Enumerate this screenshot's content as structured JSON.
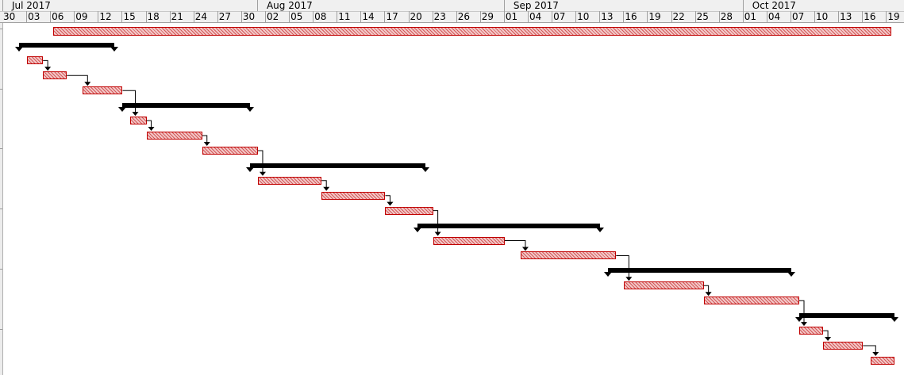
{
  "timeline": {
    "months": [
      "Jul 2017",
      "Aug 2017",
      "Sep 2017",
      "Oct 2017"
    ],
    "ticks": [
      "30",
      "03",
      "06",
      "09",
      "12",
      "15",
      "18",
      "21",
      "24",
      "27",
      "30",
      "02",
      "05",
      "08",
      "11",
      "14",
      "17",
      "20",
      "23",
      "26",
      "29",
      "01",
      "04",
      "07",
      "10",
      "13",
      "16",
      "19",
      "22",
      "25",
      "28",
      "01",
      "04",
      "07",
      "10",
      "13",
      "16",
      "19"
    ]
  },
  "colors": {
    "task_fill": "#f2c8c8",
    "task_hatch": "#d45858",
    "task_border": "#c00000",
    "summary": "#000000",
    "link": "#000000",
    "header_bg": "#f0f0f0"
  },
  "project": {
    "start": "2017-07-03",
    "finish": "2017-10-19"
  },
  "summaries": [
    {
      "start": "2017-07-02",
      "finish": "2017-07-13"
    },
    {
      "start": "2017-07-15",
      "finish": "2017-07-30"
    },
    {
      "start": "2017-07-31",
      "finish": "2017-08-21"
    },
    {
      "start": "2017-08-21",
      "finish": "2017-09-12"
    },
    {
      "start": "2017-09-14",
      "finish": "2017-10-06"
    },
    {
      "start": "2017-10-08",
      "finish": "2017-10-19"
    }
  ],
  "tasks": [
    {
      "start": "2017-07-03",
      "finish": "2017-07-04"
    },
    {
      "start": "2017-07-05",
      "finish": "2017-07-07"
    },
    {
      "start": "2017-07-10",
      "finish": "2017-07-14"
    },
    {
      "start": "2017-07-16",
      "finish": "2017-07-17"
    },
    {
      "start": "2017-07-18",
      "finish": "2017-07-24"
    },
    {
      "start": "2017-07-25",
      "finish": "2017-07-31"
    },
    {
      "start": "2017-08-01",
      "finish": "2017-08-08"
    },
    {
      "start": "2017-08-09",
      "finish": "2017-08-16"
    },
    {
      "start": "2017-08-17",
      "finish": "2017-08-22"
    },
    {
      "start": "2017-08-23",
      "finish": "2017-08-31"
    },
    {
      "start": "2017-09-03",
      "finish": "2017-09-14"
    },
    {
      "start": "2017-09-16",
      "finish": "2017-09-25"
    },
    {
      "start": "2017-09-26",
      "finish": "2017-10-07"
    },
    {
      "start": "2017-10-08",
      "finish": "2017-10-10"
    },
    {
      "start": "2017-10-11",
      "finish": "2017-10-15"
    },
    {
      "start": "2017-10-17",
      "finish": "2017-10-19"
    }
  ],
  "rows": [
    {
      "kind": "project",
      "index": 0
    },
    {
      "kind": "summary",
      "index": 0
    },
    {
      "kind": "task",
      "index": 0
    },
    {
      "kind": "task",
      "index": 1
    },
    {
      "kind": "task",
      "index": 2
    },
    {
      "kind": "summary",
      "index": 1
    },
    {
      "kind": "task",
      "index": 3
    },
    {
      "kind": "task",
      "index": 4
    },
    {
      "kind": "task",
      "index": 5
    },
    {
      "kind": "summary",
      "index": 2
    },
    {
      "kind": "task",
      "index": 6
    },
    {
      "kind": "task",
      "index": 7
    },
    {
      "kind": "task",
      "index": 8
    },
    {
      "kind": "summary",
      "index": 3
    },
    {
      "kind": "task",
      "index": 9
    },
    {
      "kind": "task",
      "index": 10
    },
    {
      "kind": "summary",
      "index": 4
    },
    {
      "kind": "task",
      "index": 11
    },
    {
      "kind": "task",
      "index": 12
    },
    {
      "kind": "summary",
      "index": 5
    },
    {
      "kind": "task",
      "index": 13
    },
    {
      "kind": "task",
      "index": 14
    },
    {
      "kind": "task",
      "index": 15
    }
  ],
  "links": [
    {
      "from": 0,
      "to": 1
    },
    {
      "from": 1,
      "to": 2
    },
    {
      "from": 2,
      "to": 3
    },
    {
      "from": 3,
      "to": 4
    },
    {
      "from": 4,
      "to": 5
    },
    {
      "from": 5,
      "to": 6
    },
    {
      "from": 6,
      "to": 7
    },
    {
      "from": 7,
      "to": 8
    },
    {
      "from": 8,
      "to": 9
    },
    {
      "from": 9,
      "to": 10
    },
    {
      "from": 10,
      "to": 11
    },
    {
      "from": 11,
      "to": 12
    },
    {
      "from": 12,
      "to": 13
    },
    {
      "from": 13,
      "to": 14
    },
    {
      "from": 14,
      "to": 15
    }
  ]
}
